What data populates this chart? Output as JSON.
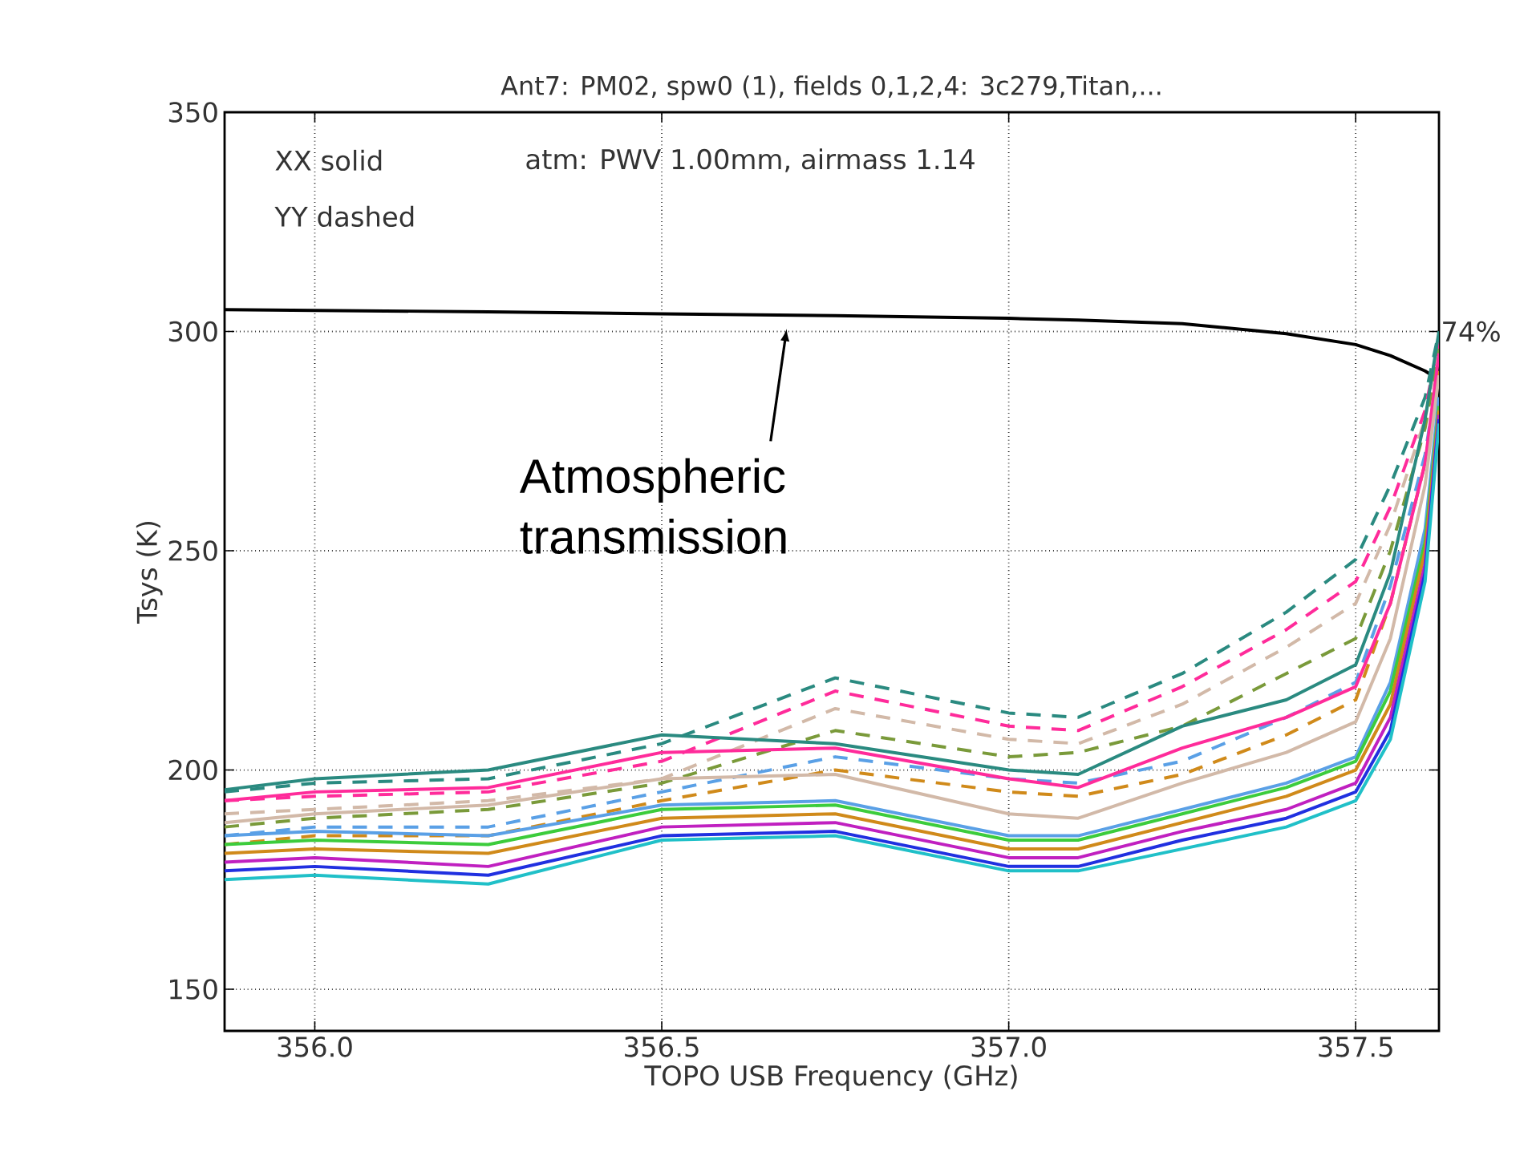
{
  "chart_data": {
    "type": "line",
    "title": "Ant7: PM02,  spw0 (1),  fields 0,1,2,4: 3c279,Titan,...",
    "xlabel": "TOPO USB Frequency (GHz)",
    "ylabel": "Tsys (K)",
    "x": [
      355.87,
      356.0,
      356.25,
      356.5,
      356.75,
      357.0,
      357.1,
      357.25,
      357.4,
      357.5,
      357.55,
      357.6,
      357.62
    ],
    "xlim": [
      355.87,
      357.62
    ],
    "ylim": [
      140.5,
      350
    ],
    "xticks": [
      {
        "value": 356.0,
        "label": "356.0"
      },
      {
        "value": 356.5,
        "label": "356.5"
      },
      {
        "value": 357.0,
        "label": "357.0"
      },
      {
        "value": 357.5,
        "label": "357.5"
      }
    ],
    "yticks": [
      150,
      200,
      250,
      300,
      350
    ],
    "grid": true,
    "marker": "none",
    "series": [
      {
        "color": "#000000",
        "line_style": "solid",
        "values": [
          305,
          304.8,
          304.5,
          304,
          303.6,
          303,
          302.6,
          301.8,
          299.5,
          297,
          294.5,
          291,
          289
        ]
      },
      {
        "color": "#2a8a80",
        "line_style": "dashed",
        "values": [
          195,
          197,
          198,
          206,
          221,
          213,
          212,
          222,
          236,
          248,
          265,
          285,
          300
        ]
      },
      {
        "color": "#ff2b9a",
        "line_style": "dashed",
        "values": [
          193,
          194,
          195,
          202,
          218,
          210,
          209,
          219,
          232,
          243,
          260,
          282,
          298
        ]
      },
      {
        "color": "#d2b9a8",
        "line_style": "dashed",
        "values": [
          190,
          191,
          193,
          198,
          214,
          207,
          206,
          215,
          228,
          238,
          256,
          280,
          297
        ]
      },
      {
        "color": "#7a9a3a",
        "line_style": "dashed",
        "values": [
          187,
          189,
          191,
          197,
          209,
          203,
          204,
          210,
          222,
          230,
          250,
          278,
          296
        ]
      },
      {
        "color": "#5aa0e6",
        "line_style": "dashed",
        "values": [
          185,
          187,
          187,
          195,
          203,
          198,
          197,
          202,
          212,
          220,
          242,
          272,
          292
        ]
      },
      {
        "color": "#d08a1a",
        "line_style": "dashed",
        "values": [
          183,
          185,
          185,
          193,
          200,
          195,
          194,
          199,
          208,
          216,
          238,
          270,
          291
        ]
      },
      {
        "color": "#2a8a80",
        "line_style": "solid",
        "values": [
          195.5,
          198,
          200,
          208,
          206,
          200,
          199,
          210,
          216,
          224,
          245,
          280,
          300
        ]
      },
      {
        "color": "#ff2b9a",
        "line_style": "solid",
        "values": [
          193,
          195,
          196,
          204,
          205,
          198,
          196,
          205,
          212,
          219,
          238,
          270,
          295
        ]
      },
      {
        "color": "#d2b9a8",
        "line_style": "solid",
        "values": [
          188,
          190,
          192,
          198,
          199,
          190,
          189,
          197,
          204,
          211,
          230,
          265,
          290
        ]
      },
      {
        "color": "#5aa0e6",
        "line_style": "solid",
        "values": [
          185,
          186,
          185,
          192,
          193,
          185,
          185,
          191,
          197,
          203,
          220,
          255,
          285
        ]
      },
      {
        "color": "#3ccc3c",
        "line_style": "solid",
        "values": [
          183,
          184,
          183,
          191,
          192,
          184,
          184,
          190,
          196,
          202,
          218,
          252,
          283
        ]
      },
      {
        "color": "#d08a1a",
        "line_style": "solid",
        "values": [
          181,
          182,
          181,
          189,
          190,
          182,
          182,
          188,
          194,
          200,
          215,
          250,
          282
        ]
      },
      {
        "color": "#c020c0",
        "line_style": "solid",
        "values": [
          179,
          180,
          178,
          187,
          188,
          180,
          180,
          186,
          191,
          197,
          212,
          247,
          281
        ]
      },
      {
        "color": "#2030e0",
        "line_style": "solid",
        "values": [
          177,
          178,
          176,
          185,
          186,
          178,
          178,
          184,
          189,
          195,
          209,
          245,
          280
        ]
      },
      {
        "color": "#20c0c8",
        "line_style": "solid",
        "values": [
          175,
          176,
          174,
          184,
          185,
          177,
          177,
          182,
          187,
          193,
          207,
          243,
          279
        ]
      }
    ],
    "annotations": [
      "XX solid",
      "YY dashed",
      "atm: PWV 1.00mm, airmass 1.14",
      {
        "text": "74%",
        "x": 357.62,
        "y": 300
      },
      {
        "text": "Atmospheric transmission",
        "x": 356.68,
        "y": 303.5
      }
    ]
  }
}
